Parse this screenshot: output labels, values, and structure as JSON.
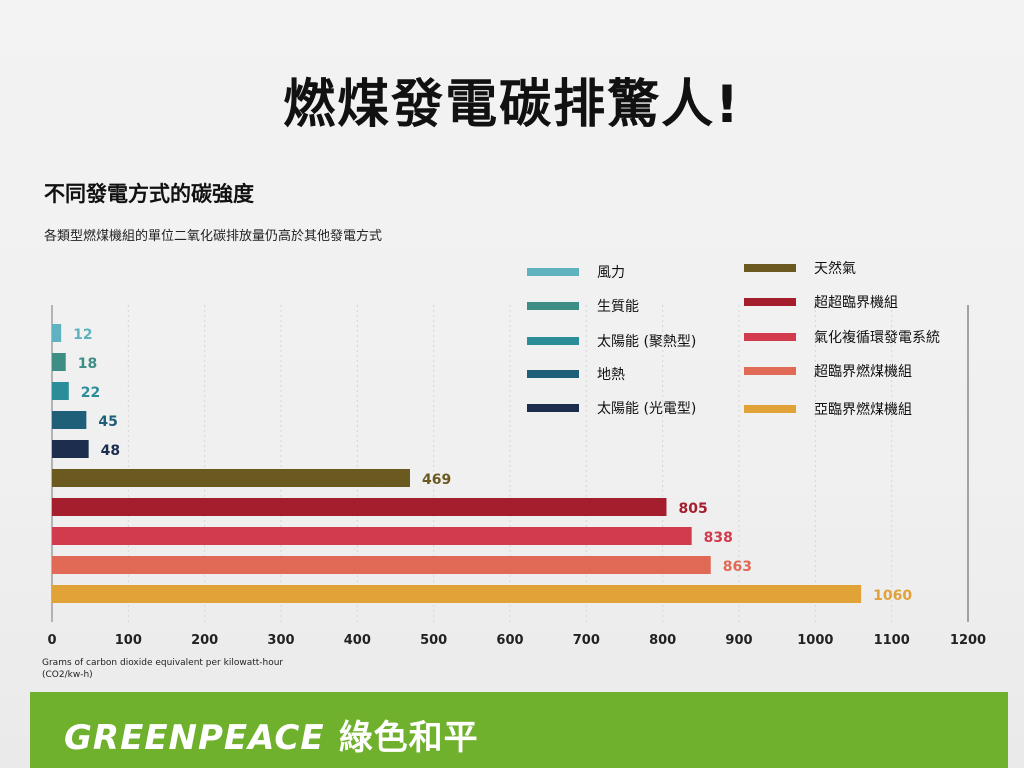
{
  "header": {
    "title": "燃煤發電碳排驚人!",
    "subtitle": "不同發電方式的碳強度",
    "description": "各類型燃煤機組的單位二氧化碳排放量仍高於其他發電方式"
  },
  "legend": [
    {
      "label": "風力",
      "color": "#5fb3c0"
    },
    {
      "label": "生質能",
      "color": "#3f8e86"
    },
    {
      "label": "太陽能 (聚熱型)",
      "color": "#2a8d98"
    },
    {
      "label": "地熱",
      "color": "#1f5f78"
    },
    {
      "label": "太陽能 (光電型)",
      "color": "#1c2d4d"
    },
    {
      "label": "天然氣",
      "color": "#6b5a20"
    },
    {
      "label": "超超臨界機組",
      "color": "#a51e2d"
    },
    {
      "label": "氣化複循環發電系統",
      "color": "#d23a4e"
    },
    {
      "label": "超臨界燃煤機組",
      "color": "#e06a55"
    },
    {
      "label": "亞臨界燃煤機組",
      "color": "#e1a238"
    }
  ],
  "chart_data": {
    "type": "bar",
    "orientation": "horizontal",
    "categories": [
      "風力",
      "生質能",
      "太陽能 (聚熱型)",
      "地熱",
      "太陽能 (光電型)",
      "天然氣",
      "超超臨界機組",
      "氣化複循環發電系統",
      "超臨界燃煤機組",
      "亞臨界燃煤機組"
    ],
    "values": [
      12,
      18,
      22,
      45,
      48,
      469,
      805,
      838,
      863,
      1060
    ],
    "value_labels": [
      "12",
      "18",
      "22",
      "45",
      "48",
      "469",
      "805",
      "838",
      "863",
      "1060"
    ],
    "colors": [
      "#5fb3c0",
      "#3f8e86",
      "#2a8d98",
      "#1f5f78",
      "#1c2d4d",
      "#6b5a20",
      "#a51e2d",
      "#d23a4e",
      "#e06a55",
      "#e1a238"
    ],
    "label_colors": [
      "#5fb3c0",
      "#3f8e86",
      "#2a8d98",
      "#1f5f78",
      "#1c2d4d",
      "#6b5a20",
      "#a51e2d",
      "#d23a4e",
      "#e06a55",
      "#e1a238"
    ],
    "xlim": [
      0,
      1200
    ],
    "xticks": [
      0,
      100,
      200,
      300,
      400,
      500,
      600,
      700,
      800,
      900,
      1000,
      1100,
      1200
    ],
    "xlabel": "Grams of carbon dioxide equivalent per kilowatt-hour (CO2/kw-h)",
    "grid": true,
    "legend_position": "top-right"
  },
  "axis_note": {
    "line1": "Grams of carbon dioxide equivalent per kilowatt-hour",
    "line2": "(CO2/kw-h)"
  },
  "footer": {
    "logo_text": "GREENPEACE",
    "logo_cn": "綠色和平",
    "color": "#6fb02c"
  }
}
